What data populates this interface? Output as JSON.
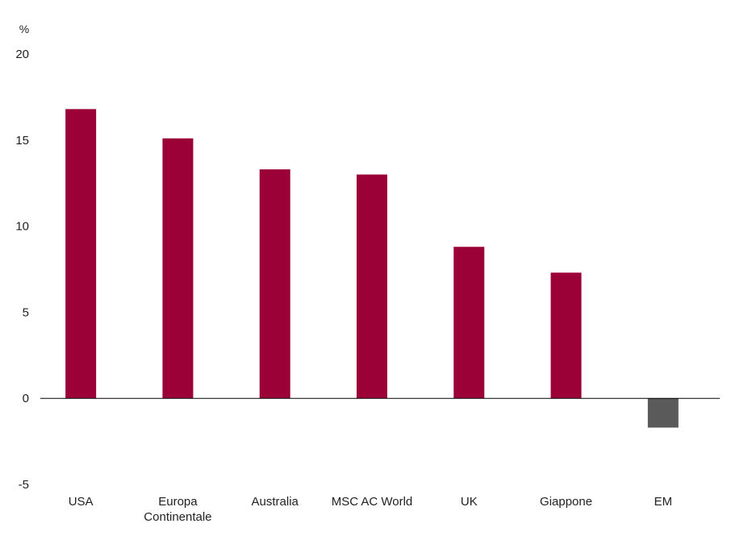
{
  "chart_data": {
    "type": "bar",
    "title": "",
    "xlabel": "",
    "ylabel": "%",
    "ylim": [
      -5,
      20
    ],
    "yticks": [
      20,
      15,
      10,
      5,
      0,
      -5
    ],
    "grid": false,
    "legend": "none",
    "categories": [
      {
        "name": "USA",
        "lines": [
          "USA"
        ]
      },
      {
        "name": "Europa Continentale",
        "lines": [
          "Europa",
          "Continentale"
        ]
      },
      {
        "name": "Australia",
        "lines": [
          "Australia"
        ]
      },
      {
        "name": "MSC AC World",
        "lines": [
          "MSC AC World"
        ]
      },
      {
        "name": "UK",
        "lines": [
          "UK"
        ]
      },
      {
        "name": "Giappone",
        "lines": [
          "Giappone"
        ]
      },
      {
        "name": "EM",
        "lines": [
          "EM"
        ]
      }
    ],
    "values": [
      16.8,
      15.1,
      13.3,
      13.0,
      8.8,
      7.3,
      -1.7
    ],
    "colors": {
      "positive": "#9b0036",
      "negative": "#5a5a5a",
      "axis": "#000000"
    }
  }
}
